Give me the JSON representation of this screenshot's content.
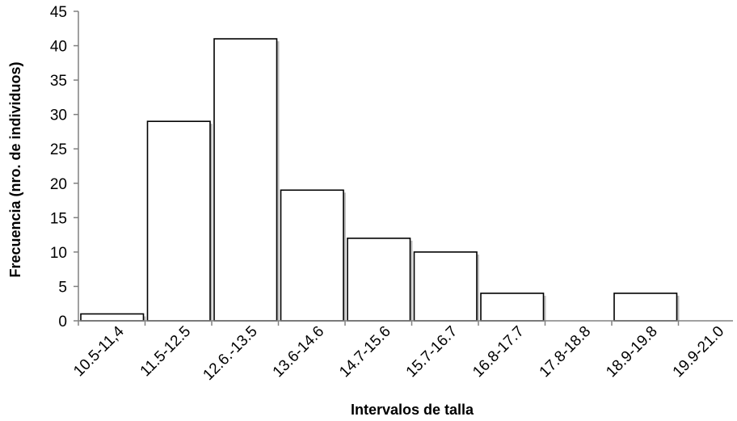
{
  "chart_data": {
    "type": "bar",
    "title": "",
    "xlabel": "Intervalos de talla",
    "ylabel": "Frecuencia (nro. de individuos)",
    "categories": [
      "10.5-11,4",
      "11.5-12.5",
      "12.6.-13.5",
      "13.6-14.6",
      "14.7-15.6",
      "15.7-16.7",
      "16.8-17.7",
      "17.8-18.8",
      "18.9-19.8",
      "19.9-21.0"
    ],
    "values": [
      1,
      29,
      41,
      19,
      12,
      10,
      4,
      0,
      4,
      0
    ],
    "ylim": [
      0,
      45
    ],
    "yticks": [
      0,
      5,
      10,
      15,
      20,
      25,
      30,
      35,
      40,
      45
    ],
    "grid": false,
    "legend": "none",
    "colors": {
      "bar_fill": "#ffffff",
      "bar_stroke": "#000000",
      "bar_shadow": "#bfbfbf",
      "axis": "#808080"
    }
  }
}
